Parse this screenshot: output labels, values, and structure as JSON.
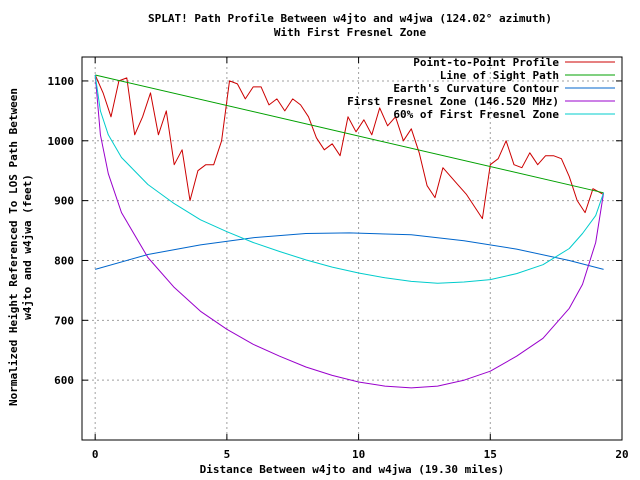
{
  "chart_data": {
    "type": "line",
    "title_line1": "SPLAT! Path Profile Between w4jto and w4jwa (124.02° azimuth)",
    "title_line2": "With First Fresnel Zone",
    "xlabel": "Distance Between w4jto and w4jwa (19.30 miles)",
    "ylabel_line1": "Normalized Height Referenced To LOS Path Between",
    "ylabel_line2": "w4jto and w4jwa (feet)",
    "xlim": [
      -0.5,
      20
    ],
    "ylim": [
      500,
      1140
    ],
    "x_ticks": [
      0,
      5,
      10,
      15,
      20
    ],
    "y_ticks": [
      600,
      700,
      800,
      900,
      1000,
      1100
    ],
    "grid": true,
    "legend_position": "top-right",
    "series": [
      {
        "name": "Point-to-Point Profile",
        "color": "#cc0000",
        "x": [
          0,
          0.3,
          0.6,
          0.9,
          1.2,
          1.5,
          1.8,
          2.1,
          2.4,
          2.7,
          3.0,
          3.3,
          3.6,
          3.9,
          4.2,
          4.5,
          4.8,
          5.1,
          5.4,
          5.7,
          6.0,
          6.3,
          6.6,
          6.9,
          7.2,
          7.5,
          7.8,
          8.1,
          8.4,
          8.7,
          9.0,
          9.3,
          9.6,
          9.9,
          10.2,
          10.5,
          10.8,
          11.1,
          11.4,
          11.7,
          12.0,
          12.3,
          12.6,
          12.9,
          13.2,
          13.5,
          13.8,
          14.1,
          14.4,
          14.7,
          15.0,
          15.3,
          15.6,
          15.9,
          16.2,
          16.5,
          16.8,
          17.1,
          17.4,
          17.7,
          18.0,
          18.3,
          18.6,
          18.9,
          19.3
        ],
        "y": [
          1110,
          1080,
          1040,
          1100,
          1105,
          1010,
          1040,
          1080,
          1010,
          1050,
          960,
          985,
          900,
          950,
          960,
          960,
          1000,
          1100,
          1095,
          1070,
          1090,
          1090,
          1060,
          1070,
          1050,
          1070,
          1060,
          1040,
          1005,
          985,
          995,
          975,
          1040,
          1015,
          1035,
          1010,
          1055,
          1025,
          1040,
          1000,
          1020,
          980,
          925,
          905,
          955,
          940,
          925,
          910,
          890,
          870,
          960,
          970,
          1000,
          960,
          955,
          980,
          960,
          975,
          975,
          970,
          940,
          900,
          880,
          920,
          910
        ]
      },
      {
        "name": "Line of Sight Path",
        "color": "#00a000",
        "x": [
          0,
          19.3
        ],
        "y": [
          1110,
          913
        ]
      },
      {
        "name": "Earth's Curvature Contour",
        "color": "#0066cc",
        "x": [
          0,
          2,
          4,
          6,
          8,
          9.65,
          12,
          14,
          16,
          18,
          19.3
        ],
        "y": [
          785,
          810,
          826,
          838,
          845,
          846,
          843,
          833,
          819,
          800,
          785
        ]
      },
      {
        "name": "First Fresnel Zone (146.520 MHz)",
        "color": "#9900cc",
        "x": [
          0,
          0.2,
          0.5,
          1,
          2,
          3,
          4,
          5,
          6,
          7,
          8,
          9,
          10,
          11,
          12,
          13,
          14,
          15,
          16,
          17,
          18,
          18.5,
          19,
          19.3
        ],
        "y": [
          1110,
          1010,
          945,
          880,
          805,
          755,
          715,
          685,
          660,
          640,
          622,
          608,
          597,
          590,
          587,
          590,
          600,
          615,
          640,
          670,
          720,
          760,
          830,
          913
        ]
      },
      {
        "name": "60% of First Fresnel Zone",
        "color": "#00cccc",
        "x": [
          0,
          0.2,
          0.5,
          1,
          2,
          3,
          4,
          5,
          6,
          7,
          8,
          9,
          10,
          11,
          12,
          13,
          14,
          15,
          16,
          17,
          18,
          18.5,
          19,
          19.3
        ],
        "y": [
          1110,
          1050,
          1010,
          972,
          927,
          895,
          868,
          848,
          830,
          815,
          801,
          789,
          779,
          771,
          765,
          762,
          764,
          768,
          778,
          793,
          820,
          845,
          875,
          913
        ]
      }
    ]
  }
}
